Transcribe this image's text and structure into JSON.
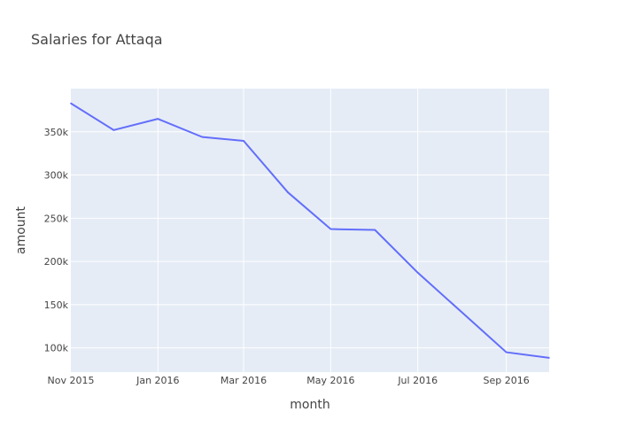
{
  "chart_data": {
    "type": "line",
    "title": "Salaries for Attaqa",
    "xlabel": "month",
    "ylabel": "amount",
    "x": [
      "2015-11-01",
      "2015-12-01",
      "2016-01-01",
      "2016-02-01",
      "2016-03-01",
      "2016-04-01",
      "2016-05-01",
      "2016-06-01",
      "2016-07-01",
      "2016-08-01",
      "2016-09-01",
      "2016-10-01"
    ],
    "series": [
      {
        "values": [
          383000,
          352000,
          365000,
          344000,
          339500,
          280000,
          237500,
          236500,
          187000,
          141000,
          95000,
          88500
        ]
      }
    ],
    "xlim": [
      "2015-11-01",
      "2016-10-01"
    ],
    "ylim": [
      72000,
      400000
    ],
    "x_ticks": [
      {
        "value": "2015-11-01",
        "label": "Nov 2015"
      },
      {
        "value": "2016-01-01",
        "label": "Jan 2016"
      },
      {
        "value": "2016-03-01",
        "label": "Mar 2016"
      },
      {
        "value": "2016-05-01",
        "label": "May 2016"
      },
      {
        "value": "2016-07-01",
        "label": "Jul 2016"
      },
      {
        "value": "2016-09-01",
        "label": "Sep 2016"
      }
    ],
    "y_ticks": [
      {
        "value": 100000,
        "label": "100k"
      },
      {
        "value": 150000,
        "label": "150k"
      },
      {
        "value": 200000,
        "label": "200k"
      },
      {
        "value": 250000,
        "label": "250k"
      },
      {
        "value": 300000,
        "label": "300k"
      },
      {
        "value": 350000,
        "label": "350k"
      }
    ],
    "grid": true,
    "colors": {
      "line": "#636efa",
      "plot_background": "#e5ecf6",
      "grid": "#ffffff"
    }
  }
}
